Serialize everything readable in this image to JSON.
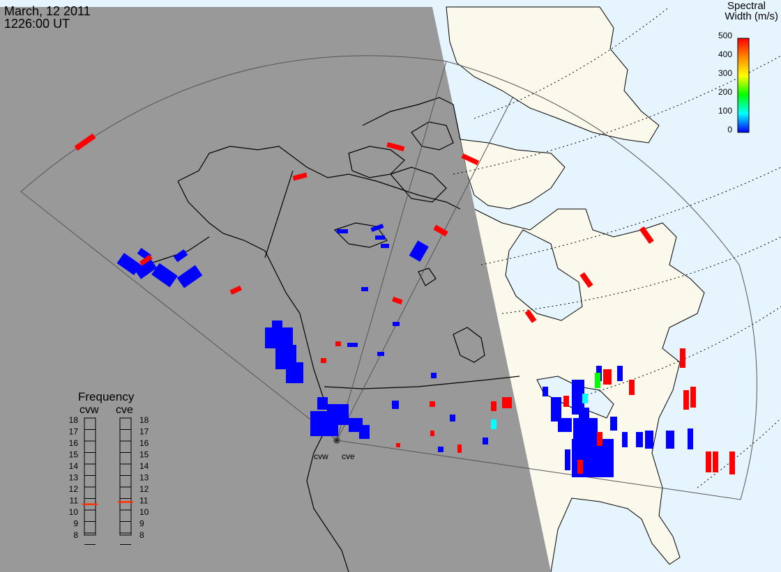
{
  "header": {
    "date": "March, 12 2011",
    "time": "1226:00 UT"
  },
  "colorbar": {
    "title_line1": "Spectral",
    "title_line2": "Width (m/s)",
    "ticks": [
      "500",
      "400",
      "300",
      "200",
      "100",
      "0"
    ],
    "stops": [
      "#ff0000",
      "#ff8800",
      "#ffff00",
      "#00ff00",
      "#00ffff",
      "#0000ff"
    ]
  },
  "frequency_panel": {
    "title": "Frequency",
    "radars": [
      {
        "name": "cvw",
        "value": 10.5
      },
      {
        "name": "cve",
        "value": 10.7
      }
    ],
    "scale": [
      "18",
      "17",
      "16",
      "15",
      "14",
      "13",
      "12",
      "11",
      "10",
      "9",
      "8"
    ]
  },
  "radar_sites": [
    "cvw",
    "cve"
  ],
  "colors": {
    "night": "#999999",
    "ocean_day": "#e6f4fd",
    "land_day": "#fbf8ec",
    "high_width": "#ff0000",
    "low_width": "#0000ff",
    "mid_width": "#00ff00",
    "low_mid_width": "#00ffff"
  }
}
